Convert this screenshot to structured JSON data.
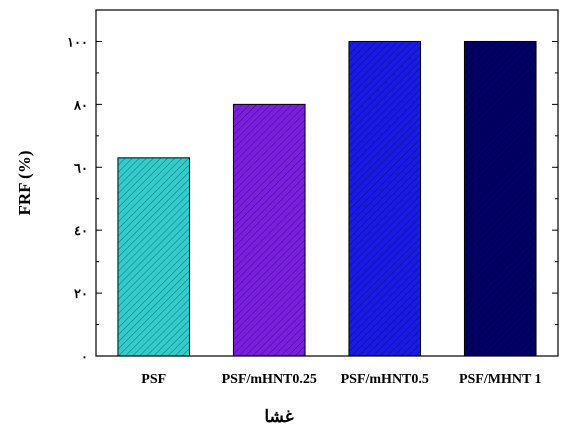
{
  "chart_data": {
    "type": "bar",
    "categories": [
      "PSF",
      "PSF/mHNT0.25",
      "PSF/mHNT0.5",
      "PSF/MHNT 1"
    ],
    "values": [
      63,
      80,
      100,
      100
    ],
    "ylabel": "FRF (%)",
    "xlabel": "غشا",
    "ylim": [
      0,
      110
    ],
    "yticks": [
      0,
      20,
      40,
      60,
      80,
      100
    ],
    "ytick_labels": [
      "٠",
      "٢٠",
      "٤٠",
      "٦٠",
      "٨٠",
      "١٠٠"
    ],
    "grid": false,
    "bar_colors": [
      "#33cccc",
      "#7a1fe0",
      "#1a1ae6",
      "#000066"
    ],
    "bar_fill": "diagonal-hatch"
  }
}
